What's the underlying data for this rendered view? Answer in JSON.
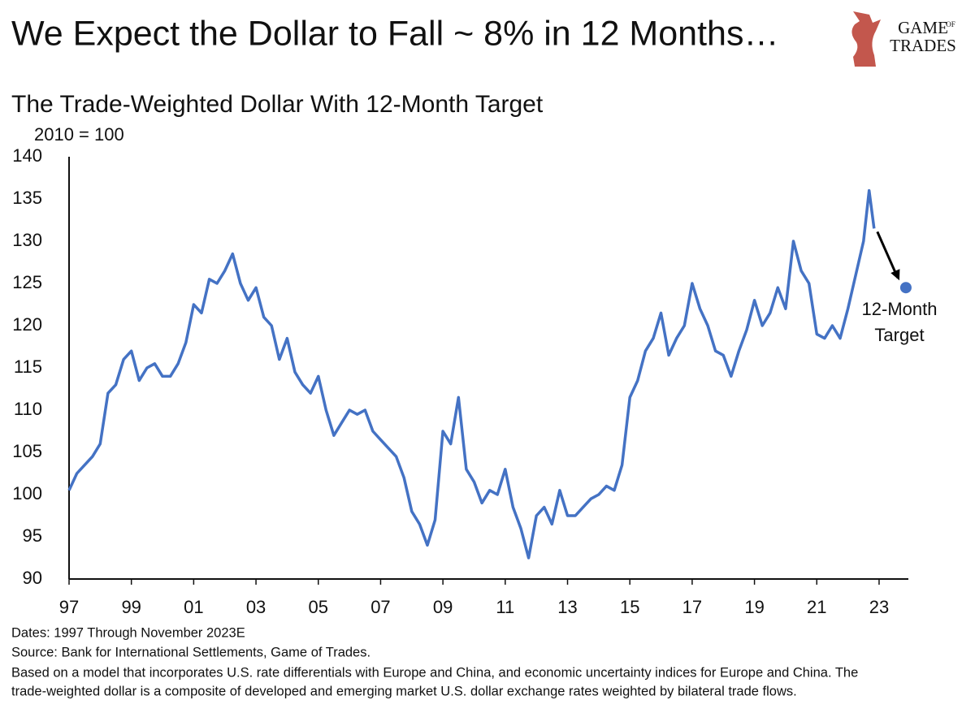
{
  "chart_data": {
    "type": "line",
    "title": "We Expect the Dollar to Fall ~ 8% in 12 Months…",
    "subtitle": "The Trade-Weighted Dollar With 12-Month Target",
    "y_unit": "2010 = 100",
    "logo": [
      "GAME",
      "OF",
      "TRADES"
    ],
    "notes": [
      "Dates: 1997 Through November 2023E",
      "Source: Bank for International Settlements, Game of Trades.",
      "Based on a model that incorporates U.S. rate differentials with Europe and China, and economic uncertainty indices for Europe and China. The",
      "trade-weighted dollar is a composite of developed  and emerging market U.S. dollar exchange rates weighted by bilateral trade flows."
    ],
    "x": [
      1997.0,
      1997.25,
      1997.5,
      1997.75,
      1998.0,
      1998.25,
      1998.5,
      1998.75,
      1999.0,
      1999.25,
      1999.5,
      1999.75,
      2000.0,
      2000.25,
      2000.5,
      2000.75,
      2001.0,
      2001.25,
      2001.5,
      2001.75,
      2002.0,
      2002.25,
      2002.5,
      2002.75,
      2003.0,
      2003.25,
      2003.5,
      2003.75,
      2004.0,
      2004.25,
      2004.5,
      2004.75,
      2005.0,
      2005.25,
      2005.5,
      2005.75,
      2006.0,
      2006.25,
      2006.5,
      2006.75,
      2007.0,
      2007.25,
      2007.5,
      2007.75,
      2008.0,
      2008.25,
      2008.5,
      2008.75,
      2009.0,
      2009.25,
      2009.5,
      2009.75,
      2010.0,
      2010.25,
      2010.5,
      2010.75,
      2011.0,
      2011.25,
      2011.5,
      2011.75,
      2012.0,
      2012.25,
      2012.5,
      2012.75,
      2013.0,
      2013.25,
      2013.5,
      2013.75,
      2014.0,
      2014.25,
      2014.5,
      2014.75,
      2015.0,
      2015.25,
      2015.5,
      2015.75,
      2016.0,
      2016.25,
      2016.5,
      2016.75,
      2017.0,
      2017.25,
      2017.5,
      2017.75,
      2018.0,
      2018.25,
      2018.5,
      2018.75,
      2019.0,
      2019.25,
      2019.5,
      2019.75,
      2020.0,
      2020.25,
      2020.5,
      2020.75,
      2021.0,
      2021.25,
      2021.5,
      2021.75,
      2022.0,
      2022.25,
      2022.5,
      2022.68,
      2022.84
    ],
    "series": [
      {
        "name": "Trade-Weighted Dollar",
        "color": "#4472c4",
        "values": [
          100.5,
          102.5,
          103.5,
          104.5,
          106,
          112,
          113,
          116,
          117,
          113.5,
          115,
          115.5,
          114,
          114,
          115.5,
          118,
          122.5,
          121.5,
          125.5,
          125,
          126.5,
          128.5,
          125,
          123,
          124.5,
          121,
          120,
          116,
          118.5,
          114.5,
          113,
          112,
          114,
          110,
          107,
          108.5,
          110,
          109.5,
          110,
          107.5,
          106.5,
          105.5,
          104.5,
          102,
          98,
          96.5,
          94,
          97,
          107.5,
          106,
          111.5,
          103,
          101.5,
          99,
          100.5,
          100,
          103,
          98.5,
          96,
          92.5,
          97.5,
          98.5,
          96.5,
          100.5,
          97.5,
          97.5,
          98.5,
          99.5,
          100,
          101,
          100.5,
          103.5,
          111.5,
          113.5,
          117,
          118.5,
          121.5,
          116.5,
          118.5,
          120,
          125,
          122,
          120,
          117,
          116.5,
          114,
          117,
          119.5,
          123,
          120,
          121.5,
          124.5,
          122,
          130,
          126.5,
          125,
          119,
          118.5,
          120,
          118.5,
          122,
          126,
          130,
          136,
          131.5
        ]
      }
    ],
    "target": {
      "x": 2023.86,
      "value": 124.5,
      "label": [
        "12-Month",
        "Target"
      ]
    },
    "xlim": [
      1997,
      2023.94
    ],
    "xticks": [
      {
        "value": 1997,
        "label": "97"
      },
      {
        "value": 1999,
        "label": "99"
      },
      {
        "value": 2001,
        "label": "01"
      },
      {
        "value": 2003,
        "label": "03"
      },
      {
        "value": 2005,
        "label": "05"
      },
      {
        "value": 2007,
        "label": "07"
      },
      {
        "value": 2009,
        "label": "09"
      },
      {
        "value": 2011,
        "label": "11"
      },
      {
        "value": 2013,
        "label": "13"
      },
      {
        "value": 2015,
        "label": "15"
      },
      {
        "value": 2017,
        "label": "17"
      },
      {
        "value": 2019,
        "label": "19"
      },
      {
        "value": 2021,
        "label": "21"
      },
      {
        "value": 2023,
        "label": "23"
      }
    ],
    "ylim": [
      90,
      140
    ],
    "yticks": [
      90,
      95,
      100,
      105,
      110,
      115,
      120,
      125,
      130,
      135,
      140
    ],
    "grid": false
  }
}
